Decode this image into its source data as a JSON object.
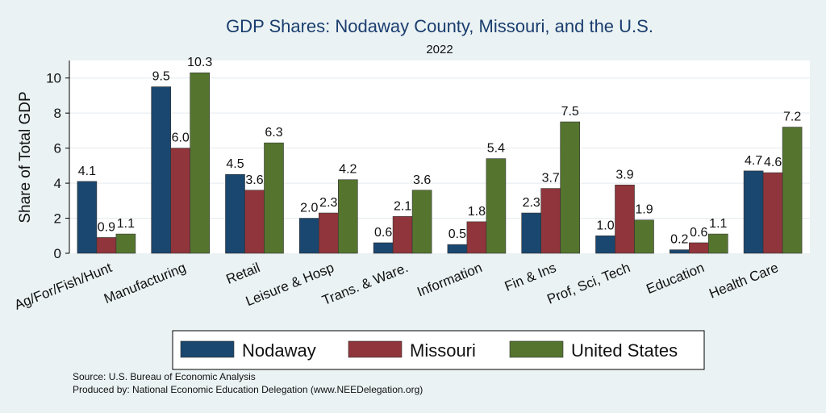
{
  "chart_data": {
    "type": "bar",
    "title": "GDP Shares: Nodaway County, Missouri, and the U.S.",
    "subtitle": "2022",
    "ylabel": "Share of Total GDP",
    "xlabel": "",
    "ylim": [
      0,
      11
    ],
    "yticks": [
      0,
      2,
      4,
      6,
      8,
      10
    ],
    "categories": [
      "Ag/For/Fish/Hunt",
      "Manufacturing",
      "Retail",
      "Leisure & Hosp",
      "Trans. & Ware.",
      "Information",
      "Fin & Ins",
      "Prof, Sci, Tech",
      "Education",
      "Health Care"
    ],
    "series": [
      {
        "name": "Nodaway",
        "color": "#1a476f",
        "values": [
          4.1,
          9.5,
          4.5,
          2.0,
          0.6,
          0.5,
          2.3,
          1.0,
          0.2,
          4.7
        ]
      },
      {
        "name": "Missouri",
        "color": "#90353b",
        "values": [
          0.9,
          6.0,
          3.6,
          2.3,
          2.1,
          1.8,
          3.7,
          3.9,
          0.6,
          4.6
        ]
      },
      {
        "name": "United States",
        "color": "#55752f",
        "values": [
          1.1,
          10.3,
          6.3,
          4.2,
          3.6,
          5.4,
          7.5,
          1.9,
          1.1,
          7.2
        ]
      }
    ],
    "value_labels": [
      [
        "4.1",
        "9.5",
        "4.5",
        "2.0",
        "0.6",
        "0.5",
        "2.3",
        "1.0",
        "0.2",
        "4.7"
      ],
      [
        "0.9",
        "6.0",
        "3.6",
        "2.3",
        "2.1",
        "1.8",
        "3.7",
        "3.9",
        "0.6",
        "4.6"
      ],
      [
        "1.1",
        "10.3",
        "6.3",
        "4.2",
        "3.6",
        "5.4",
        "7.5",
        "1.9",
        "1.1",
        "7.2"
      ]
    ],
    "grid": true,
    "legend_position": "bottom"
  },
  "source_lines": [
    "Source: U.S. Bureau of Economic Analysis",
    "Produced by: National Economic Education Delegation (www.NEEDelegation.org)"
  ]
}
